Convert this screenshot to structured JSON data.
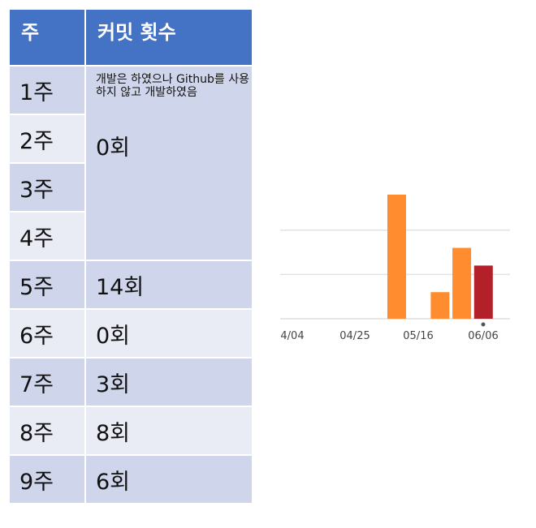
{
  "table": {
    "headers": [
      "주",
      "커밋 횟수"
    ],
    "note": "개발은 하였으나 Github를 사용하지 않고 개발하였음",
    "merged_weeks": [
      "1주",
      "2주",
      "3주",
      "4주"
    ],
    "merged_count": "0회",
    "rows": [
      {
        "week": "5주",
        "count": "14회"
      },
      {
        "week": "6주",
        "count": "0회"
      },
      {
        "week": "7주",
        "count": "3회"
      },
      {
        "week": "8주",
        "count": "8회"
      },
      {
        "week": "9주",
        "count": "6회"
      }
    ]
  },
  "chart_data": {
    "type": "bar",
    "x_tick_labels": [
      "4/04",
      "04/25",
      "05/16",
      "06/06"
    ],
    "values": [
      14,
      3,
      8,
      6
    ],
    "bar_positions_in_weeks": [
      5,
      7,
      8,
      9
    ],
    "colors": [
      "#ff8c2e",
      "#ff8c2e",
      "#ff8c2e",
      "#b3202a"
    ],
    "ylim": [
      0,
      14
    ],
    "gridlines": [
      5,
      10
    ],
    "grid": true,
    "legend": "none"
  }
}
